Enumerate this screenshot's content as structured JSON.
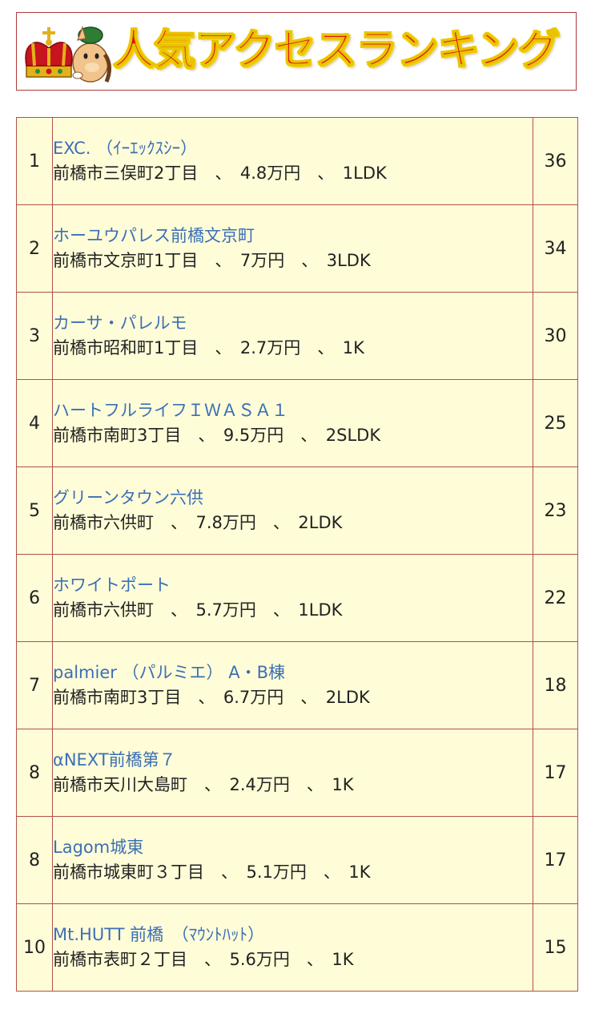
{
  "header": {
    "title": "人気アクセスランキング"
  },
  "ranking": [
    {
      "rank": "1",
      "name": "EXC. （ｲｰｴｯｸｽｼｰ）",
      "detail": "前橋市三俣町2丁目　、　4.8万円　、　1LDK",
      "count": "36"
    },
    {
      "rank": "2",
      "name": "ホーユウパレス前橋文京町",
      "detail": "前橋市文京町1丁目　、　7万円　、　3LDK",
      "count": "34"
    },
    {
      "rank": "3",
      "name": "カーサ・パレルモ",
      "detail": "前橋市昭和町1丁目　、　2.7万円　、　1K",
      "count": "30"
    },
    {
      "rank": "4",
      "name": "ハートフルライフＩＷＡＳＡ１",
      "detail": "前橋市南町3丁目　、　9.5万円　、　2SLDK",
      "count": "25"
    },
    {
      "rank": "5",
      "name": "グリーンタウン六供",
      "detail": "前橋市六供町　、　7.8万円　、　2LDK",
      "count": "23"
    },
    {
      "rank": "6",
      "name": "ホワイトポート",
      "detail": "前橋市六供町　、　5.7万円　、　1LDK",
      "count": "22"
    },
    {
      "rank": "7",
      "name": "palmier （パルミエ） A・B棟",
      "detail": "前橋市南町3丁目　、　6.7万円　、　2LDK",
      "count": "18"
    },
    {
      "rank": "8",
      "name": "αNEXT前橋第７",
      "detail": "前橋市天川大島町　、　2.4万円　、　1K",
      "count": "17"
    },
    {
      "rank": "8",
      "name": "Lagom城東",
      "detail": "前橋市城東町３丁目　、　5.1万円　、　1K",
      "count": "17"
    },
    {
      "rank": "10",
      "name": "Mt.HUTT 前橋　（ﾏｳﾝﾄﾊｯﾄ）",
      "detail": "前橋市表町２丁目　、　5.6万円　、　1K",
      "count": "15"
    }
  ],
  "colors": {
    "title": "#e01010",
    "title_outline": "#e8c400",
    "link": "#3b6fb6",
    "row_bg": "#fffdd8",
    "border": "#b05050"
  }
}
